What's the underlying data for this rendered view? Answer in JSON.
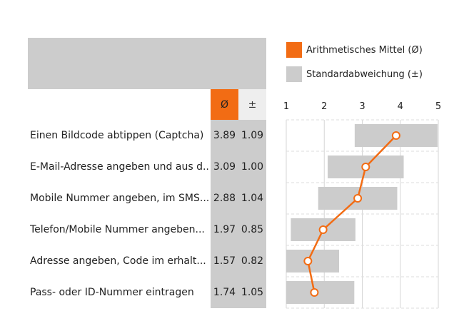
{
  "legend": {
    "mean_label": "Arithmetisches Mittel (Ø)",
    "sd_label": "Standardabweichung (±)"
  },
  "table": {
    "mean_header": "Ø",
    "sd_header": "±"
  },
  "colors": {
    "mean": "#f26c14",
    "sd": "#cccccc"
  },
  "chart_data": {
    "type": "bar",
    "categories": [
      "Einen Bildcode abtippen (Captcha)",
      "E-Mail-Adresse angeben und aus d..",
      "Mobile Nummer angeben, im SMS...",
      "Telefon/Mobile Nummer angeben...",
      "Adresse angeben, Code im erhalt...",
      "Pass- oder ID-Nummer eintragen"
    ],
    "series": [
      {
        "name": "Arithmetisches Mittel (Ø)",
        "values": [
          3.89,
          3.09,
          2.88,
          1.97,
          1.57,
          1.74
        ]
      },
      {
        "name": "Standardabweichung (±)",
        "values": [
          1.09,
          1.0,
          1.04,
          0.85,
          0.82,
          1.05
        ]
      }
    ],
    "mean_display": [
      "3.89",
      "3.09",
      "2.88",
      "1.97",
      "1.57",
      "1.74"
    ],
    "sd_display": [
      "1.09",
      "1.00",
      "1.04",
      "0.85",
      "0.82",
      "1.05"
    ],
    "xlim": [
      1,
      5
    ],
    "xticks": [
      "1",
      "2",
      "3",
      "4",
      "5"
    ],
    "grid": true,
    "legend_position": "top"
  }
}
